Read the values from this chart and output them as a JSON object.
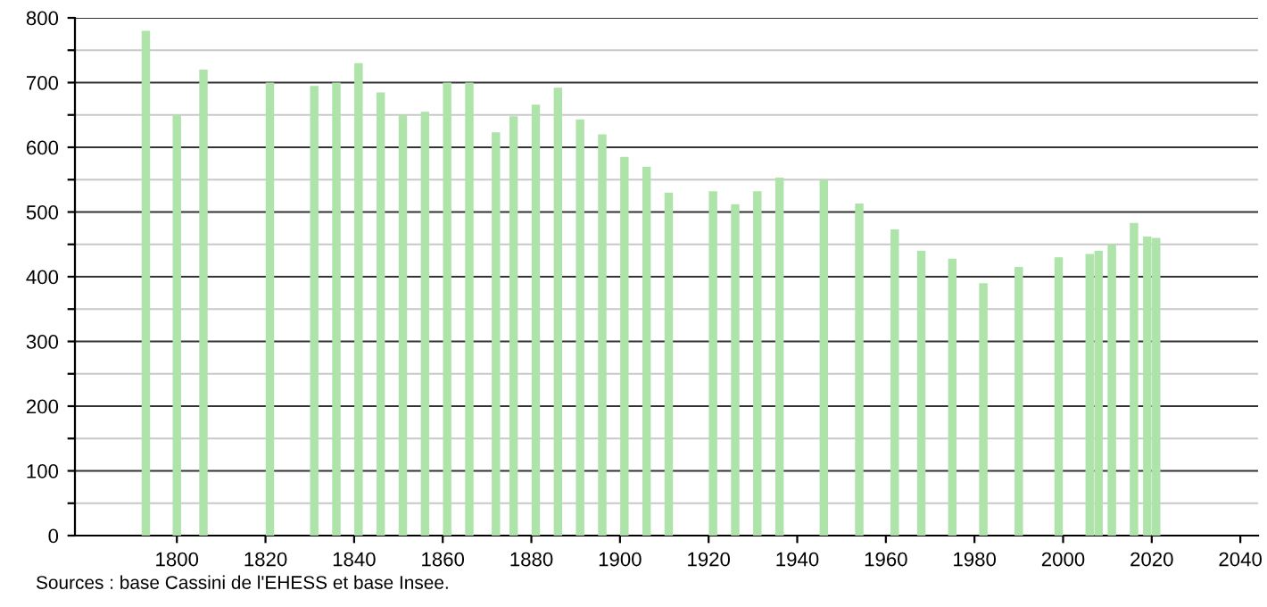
{
  "chart_data": {
    "type": "bar",
    "x": [
      1793,
      1800,
      1806,
      1821,
      1831,
      1836,
      1841,
      1846,
      1851,
      1856,
      1861,
      1866,
      1872,
      1876,
      1881,
      1886,
      1891,
      1896,
      1901,
      1906,
      1911,
      1921,
      1926,
      1931,
      1936,
      1946,
      1954,
      1962,
      1968,
      1975,
      1982,
      1990,
      1999,
      2006,
      2008,
      2011,
      2016,
      2019,
      2021
    ],
    "values": [
      780,
      650,
      720,
      700,
      695,
      700,
      730,
      685,
      650,
      655,
      700,
      700,
      623,
      648,
      666,
      692,
      643,
      620,
      585,
      570,
      530,
      532,
      512,
      532,
      553,
      550,
      513,
      473,
      440,
      428,
      390,
      415,
      430,
      435,
      440,
      450,
      483,
      462,
      460
    ],
    "color": "#aee3aa",
    "xlim": [
      1777,
      2044
    ],
    "xticks": [
      1800,
      1820,
      1840,
      1860,
      1880,
      1900,
      1920,
      1940,
      1960,
      1980,
      2000,
      2020,
      2040
    ],
    "ylim": [
      0,
      800
    ],
    "yticks": [
      0,
      {
        "value": 50,
        "label": null
      },
      100,
      {
        "value": 150,
        "label": null
      },
      200,
      {
        "value": 250,
        "label": null
      },
      300,
      {
        "value": 350,
        "label": null
      },
      400,
      {
        "value": 450,
        "label": null
      },
      500,
      {
        "value": 550,
        "label": null
      },
      600,
      {
        "value": 650,
        "label": null
      },
      700,
      {
        "value": 750,
        "label": null
      },
      800
    ],
    "grid": "y",
    "annotations": [
      "Sources : base Cassini de l'EHESS et base Insee."
    ]
  }
}
